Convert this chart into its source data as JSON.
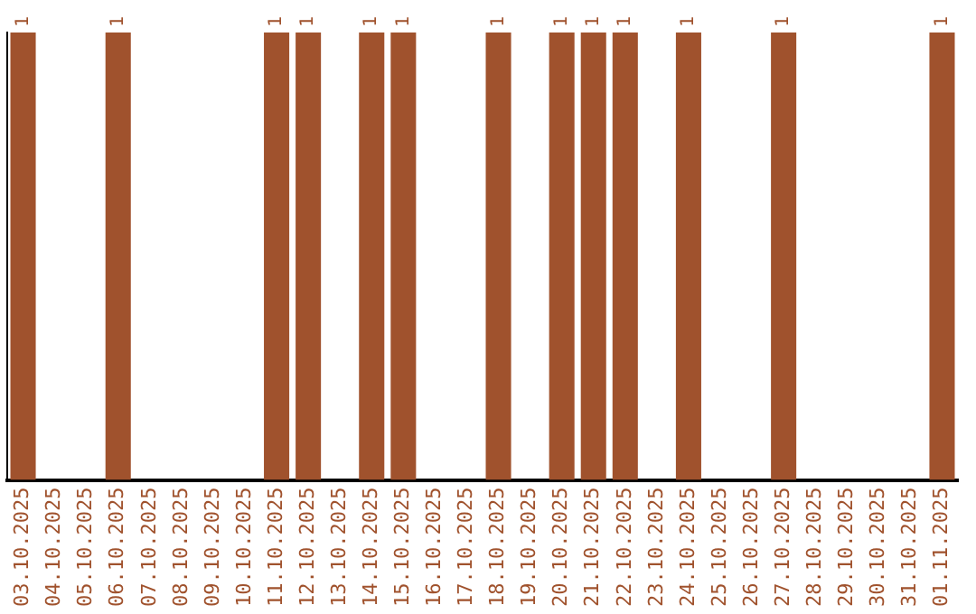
{
  "chart_data": {
    "type": "bar",
    "ylim": [
      0,
      1
    ],
    "tick_labels": "x",
    "color": "#a0522d",
    "categories": [
      "03.10.2025",
      "04.10.2025",
      "05.10.2025",
      "06.10.2025",
      "07.10.2025",
      "08.10.2025",
      "09.10.2025",
      "10.10.2025",
      "11.10.2025",
      "12.10.2025",
      "13.10.2025",
      "14.10.2025",
      "15.10.2025",
      "16.10.2025",
      "17.10.2025",
      "18.10.2025",
      "19.10.2025",
      "20.10.2025",
      "21.10.2025",
      "22.10.2025",
      "23.10.2025",
      "24.10.2025",
      "25.10.2025",
      "26.10.2025",
      "27.10.2025",
      "28.10.2025",
      "29.10.2025",
      "30.10.2025",
      "31.10.2025",
      "01.11.2025"
    ],
    "values": [
      1,
      0,
      0,
      1,
      0,
      0,
      0,
      0,
      1,
      1,
      0,
      1,
      1,
      0,
      0,
      1,
      0,
      1,
      1,
      1,
      0,
      1,
      0,
      0,
      1,
      0,
      0,
      0,
      0,
      1
    ],
    "value_labels": [
      "1",
      null,
      null,
      "1",
      null,
      null,
      null,
      null,
      "1",
      "1",
      null,
      "1",
      "1",
      null,
      null,
      "1",
      null,
      "1",
      "1",
      "1",
      null,
      "1",
      null,
      null,
      "1",
      null,
      null,
      null,
      null,
      "1"
    ],
    "grid": false,
    "legend": false
  }
}
